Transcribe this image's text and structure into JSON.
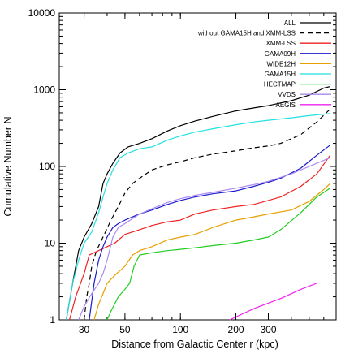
{
  "chart_data": {
    "type": "line",
    "xlabel": "Distance from Galactic Center r (kpc)",
    "ylabel": "Cumulative Number N",
    "x_scale": "log",
    "y_scale": "log",
    "xlim": [
      22,
      700
    ],
    "ylim": [
      1,
      10000
    ],
    "x_ticks": [
      {
        "value": 30,
        "label": "30"
      },
      {
        "value": 50,
        "label": "50"
      },
      {
        "value": 100,
        "label": "100"
      },
      {
        "value": 200,
        "label": "200"
      },
      {
        "value": 300,
        "label": "300"
      }
    ],
    "y_ticks": [
      {
        "value": 1,
        "label": "1"
      },
      {
        "value": 10,
        "label": "10"
      },
      {
        "value": 100,
        "label": "100"
      },
      {
        "value": 1000,
        "label": "1000"
      },
      {
        "value": 10000,
        "label": "10000"
      }
    ],
    "grid": false,
    "legend_position": "top-right",
    "series": [
      {
        "name": "ALL",
        "color": "#000000",
        "dash": "solid",
        "points": [
          [
            24,
            1
          ],
          [
            26,
            3
          ],
          [
            28,
            8
          ],
          [
            30,
            12
          ],
          [
            33,
            18
          ],
          [
            36,
            30
          ],
          [
            38,
            60
          ],
          [
            40,
            80
          ],
          [
            43,
            110
          ],
          [
            47,
            150
          ],
          [
            52,
            180
          ],
          [
            60,
            200
          ],
          [
            70,
            230
          ],
          [
            85,
            290
          ],
          [
            100,
            340
          ],
          [
            120,
            390
          ],
          [
            150,
            450
          ],
          [
            200,
            530
          ],
          [
            250,
            580
          ],
          [
            300,
            620
          ],
          [
            400,
            720
          ],
          [
            500,
            850
          ],
          [
            600,
            1050
          ],
          [
            650,
            1100
          ]
        ]
      },
      {
        "name": "without GAMA15H and XMM-LSS",
        "color": "#000000",
        "dash": "dashed",
        "points": [
          [
            30,
            1
          ],
          [
            31,
            2
          ],
          [
            32,
            3
          ],
          [
            33,
            5
          ],
          [
            35,
            8
          ],
          [
            38,
            12
          ],
          [
            42,
            20
          ],
          [
            46,
            30
          ],
          [
            50,
            45
          ],
          [
            55,
            60
          ],
          [
            60,
            70
          ],
          [
            70,
            90
          ],
          [
            85,
            105
          ],
          [
            100,
            115
          ],
          [
            120,
            130
          ],
          [
            150,
            145
          ],
          [
            200,
            160
          ],
          [
            250,
            175
          ],
          [
            300,
            185
          ],
          [
            350,
            200
          ],
          [
            450,
            260
          ],
          [
            550,
            380
          ],
          [
            650,
            560
          ]
        ]
      },
      {
        "name": "XMM-LSS",
        "color": "#ee2222",
        "dash": "solid",
        "points": [
          [
            25,
            1
          ],
          [
            27,
            2
          ],
          [
            30,
            4
          ],
          [
            32,
            7
          ],
          [
            36,
            8
          ],
          [
            40,
            9
          ],
          [
            44,
            10
          ],
          [
            50,
            13
          ],
          [
            55,
            14
          ],
          [
            60,
            15
          ],
          [
            70,
            17
          ],
          [
            85,
            19
          ],
          [
            100,
            20
          ],
          [
            120,
            24
          ],
          [
            150,
            27
          ],
          [
            200,
            30
          ],
          [
            250,
            32
          ],
          [
            300,
            36
          ],
          [
            350,
            40
          ],
          [
            450,
            55
          ],
          [
            550,
            80
          ],
          [
            650,
            140
          ]
        ]
      },
      {
        "name": "GAMA09H",
        "color": "#1a1acc",
        "dash": "solid",
        "points": [
          [
            32,
            1
          ],
          [
            34,
            3
          ],
          [
            36,
            6
          ],
          [
            38,
            9
          ],
          [
            40,
            12
          ],
          [
            43,
            16
          ],
          [
            46,
            18
          ],
          [
            50,
            20
          ],
          [
            55,
            22
          ],
          [
            60,
            24
          ],
          [
            70,
            27
          ],
          [
            85,
            32
          ],
          [
            100,
            36
          ],
          [
            120,
            40
          ],
          [
            150,
            44
          ],
          [
            200,
            48
          ],
          [
            250,
            55
          ],
          [
            300,
            62
          ],
          [
            350,
            70
          ],
          [
            450,
            95
          ],
          [
            550,
            140
          ],
          [
            650,
            190
          ]
        ]
      },
      {
        "name": "WIDE12H",
        "color": "#e8a000",
        "dash": "solid",
        "points": [
          [
            34,
            1
          ],
          [
            36,
            1.6
          ],
          [
            38,
            2.2
          ],
          [
            40,
            3.0
          ],
          [
            45,
            4
          ],
          [
            50,
            5
          ],
          [
            55,
            7
          ],
          [
            60,
            8
          ],
          [
            70,
            9
          ],
          [
            85,
            11
          ],
          [
            100,
            12
          ],
          [
            120,
            13
          ],
          [
            150,
            16
          ],
          [
            200,
            20
          ],
          [
            250,
            22
          ],
          [
            300,
            24
          ],
          [
            400,
            27
          ],
          [
            500,
            35
          ],
          [
            600,
            50
          ],
          [
            650,
            60
          ]
        ]
      },
      {
        "name": "GAMA15H",
        "color": "#22e0e0",
        "dash": "solid",
        "points": [
          [
            24,
            1
          ],
          [
            26,
            3
          ],
          [
            28,
            6
          ],
          [
            30,
            10
          ],
          [
            33,
            14
          ],
          [
            36,
            25
          ],
          [
            38,
            40
          ],
          [
            40,
            60
          ],
          [
            43,
            90
          ],
          [
            47,
            130
          ],
          [
            52,
            150
          ],
          [
            60,
            170
          ],
          [
            70,
            180
          ],
          [
            85,
            220
          ],
          [
            100,
            250
          ],
          [
            120,
            280
          ],
          [
            150,
            310
          ],
          [
            200,
            350
          ],
          [
            250,
            380
          ],
          [
            300,
            400
          ],
          [
            400,
            430
          ],
          [
            500,
            460
          ],
          [
            650,
            490
          ]
        ]
      },
      {
        "name": "HECTMAP",
        "color": "#22cc22",
        "dash": "solid",
        "points": [
          [
            40,
            1
          ],
          [
            42,
            1.3
          ],
          [
            46,
            2
          ],
          [
            50,
            2.5
          ],
          [
            53,
            3
          ],
          [
            56,
            5
          ],
          [
            60,
            7
          ],
          [
            70,
            7.5
          ],
          [
            85,
            8
          ],
          [
            100,
            8.3
          ],
          [
            120,
            8.7
          ],
          [
            150,
            9.3
          ],
          [
            200,
            10
          ],
          [
            250,
            11
          ],
          [
            300,
            12
          ],
          [
            350,
            15
          ],
          [
            450,
            25
          ],
          [
            550,
            40
          ],
          [
            650,
            52
          ]
        ]
      },
      {
        "name": "VVDS",
        "color": "#aa88ee",
        "dash": "solid",
        "points": [
          [
            28,
            1
          ],
          [
            30,
            1.5
          ],
          [
            33,
            2.2
          ],
          [
            36,
            3
          ],
          [
            38,
            4
          ],
          [
            40,
            6
          ],
          [
            43,
            12
          ],
          [
            46,
            16
          ],
          [
            50,
            18
          ],
          [
            55,
            21
          ],
          [
            60,
            24
          ],
          [
            70,
            28
          ],
          [
            85,
            34
          ],
          [
            100,
            38
          ],
          [
            120,
            42
          ],
          [
            150,
            46
          ],
          [
            200,
            52
          ],
          [
            250,
            58
          ],
          [
            300,
            64
          ],
          [
            400,
            80
          ],
          [
            500,
            100
          ],
          [
            650,
            130
          ]
        ]
      },
      {
        "name": "AEGIS",
        "color": "#ee22ee",
        "dash": "solid",
        "points": [
          [
            185,
            1
          ],
          [
            250,
            1.4
          ],
          [
            350,
            1.9
          ],
          [
            450,
            2.5
          ],
          [
            550,
            3.0
          ]
        ]
      }
    ]
  }
}
